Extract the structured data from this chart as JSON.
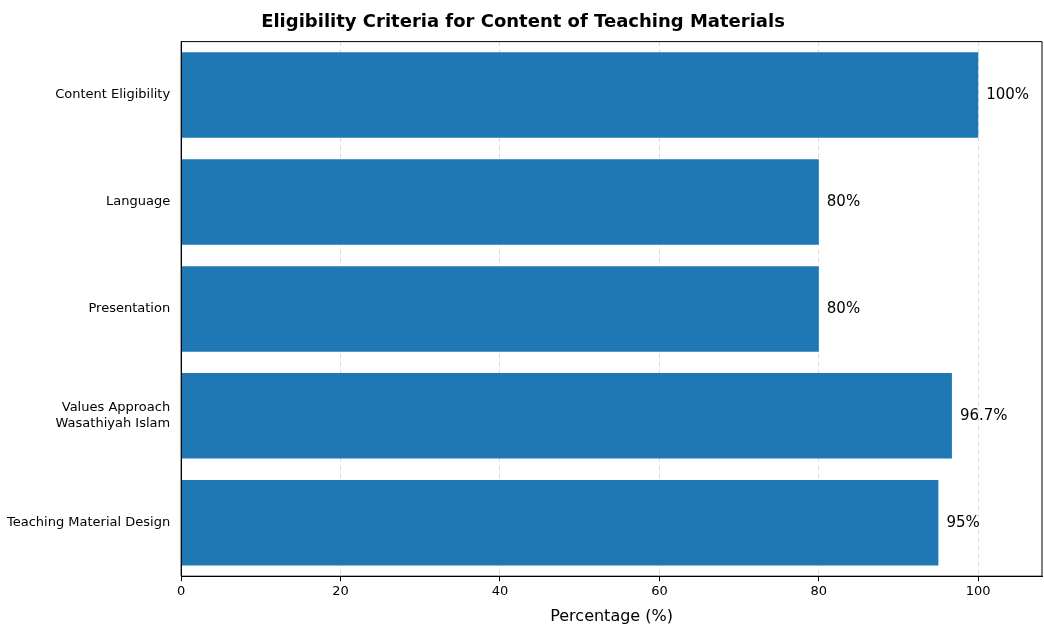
{
  "chart_data": {
    "type": "bar",
    "orientation": "horizontal",
    "title": "Eligibility Criteria for Content of Teaching Materials",
    "xlabel": "Percentage (%)",
    "categories": [
      "Content Eligibility",
      "Language",
      "Presentation",
      "Values Approach\nWasathiyah Islam",
      "Teaching Material Design"
    ],
    "values": [
      100,
      80,
      80,
      96.7,
      95
    ],
    "value_labels": [
      "100%",
      "80%",
      "80%",
      "96.7%",
      "95%"
    ],
    "color": "#1f77b4",
    "xlim": [
      0,
      108
    ],
    "xticks": [
      0,
      20,
      40,
      60,
      80,
      100
    ],
    "grid": "x",
    "legend": false
  }
}
